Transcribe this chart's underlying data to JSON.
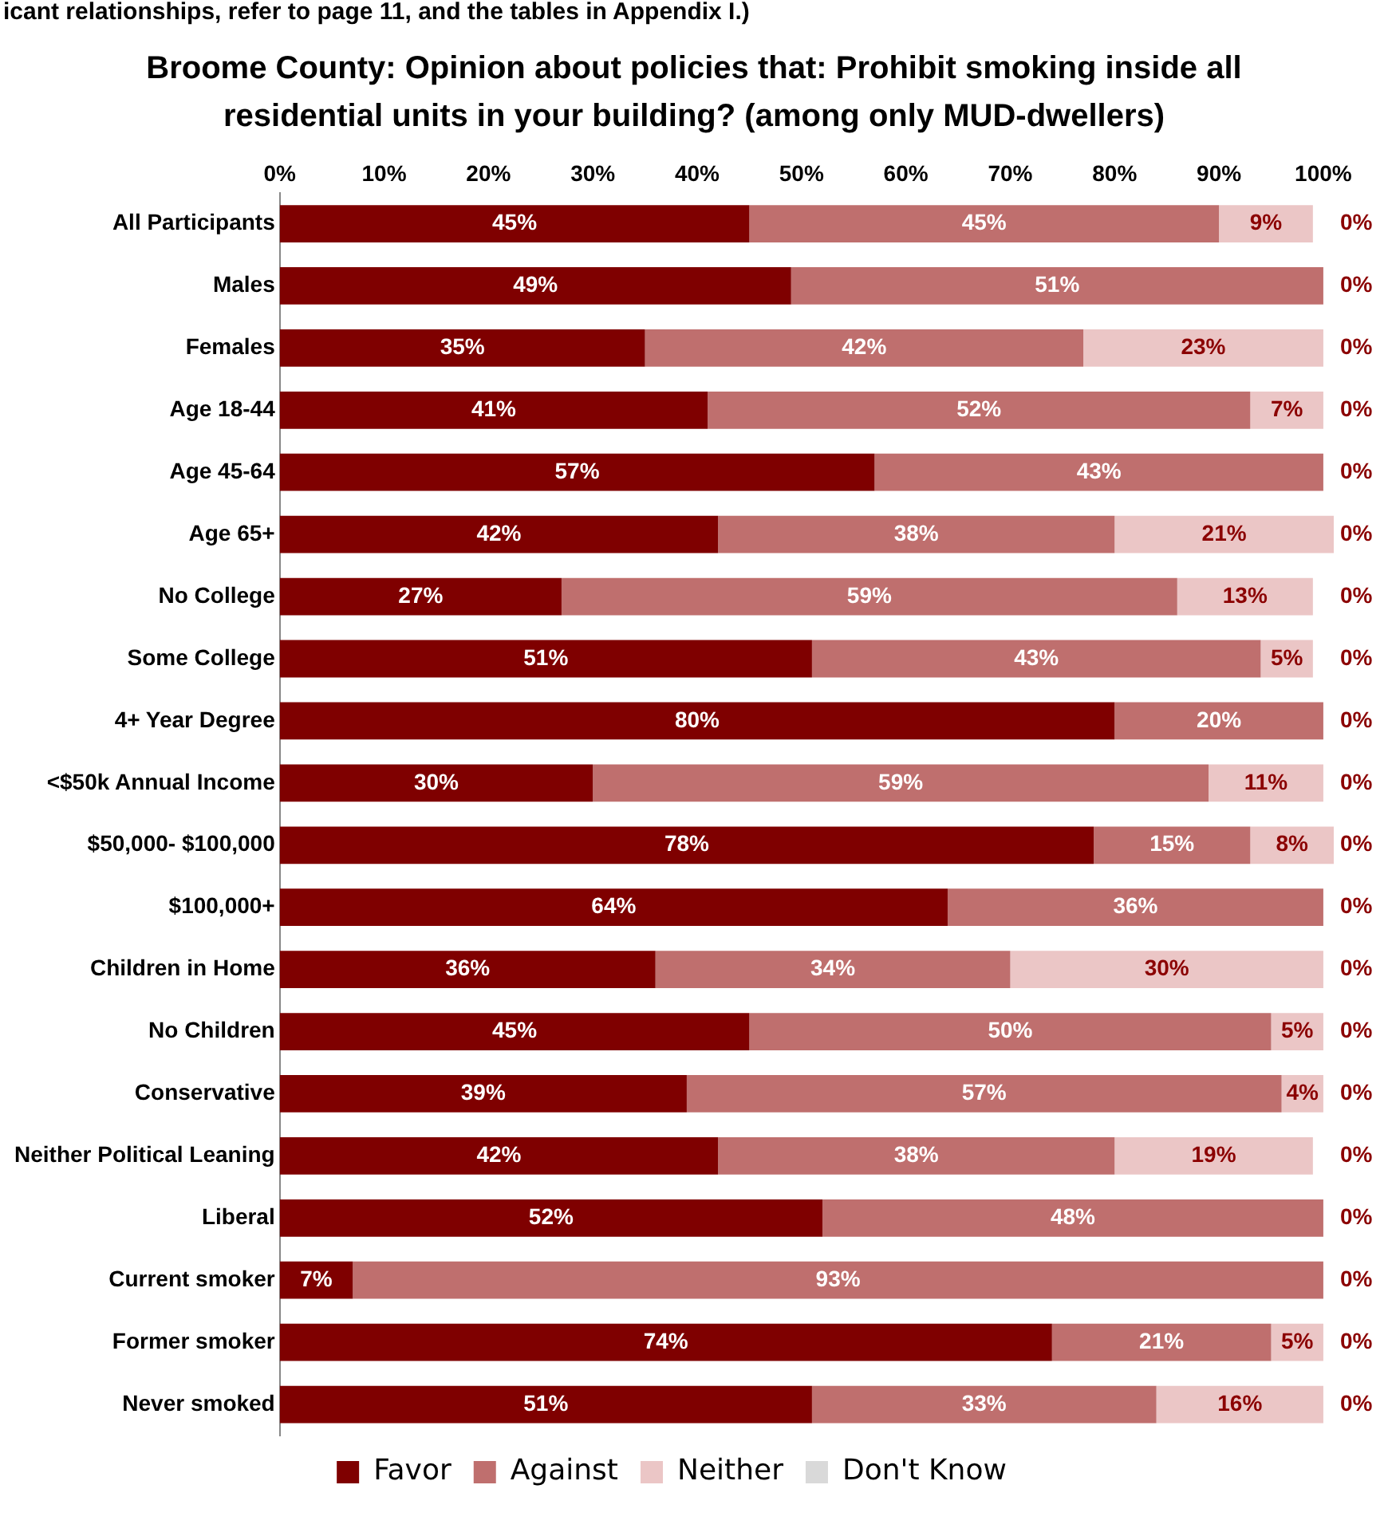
{
  "chart_data": {
    "type": "bar",
    "orientation": "horizontal",
    "stacked": true,
    "title": "Broome County: Opinion about policies that: Prohibit smoking inside all residential units in your building? (among only MUD-dwellers)",
    "annotations": [
      "icant relationships, refer to page 11, and the tables in Appendix I.)"
    ],
    "categories": [
      "All Participants",
      "Males",
      "Females",
      "Age 18-44",
      "Age 45-64",
      "Age 65+",
      "No College",
      "Some College",
      "4+ Year Degree",
      "<$50k Annual Income",
      "$50,000- $100,000",
      "$100,000+",
      "Children in Home",
      "No Children",
      "Conservative",
      "Neither Political Leaning",
      "Liberal",
      "Current smoker",
      "Former smoker",
      "Never smoked"
    ],
    "series": [
      {
        "name": "Favor",
        "color": "#7f0000",
        "values": [
          45,
          49,
          35,
          41,
          57,
          42,
          27,
          51,
          80,
          30,
          78,
          64,
          36,
          45,
          39,
          42,
          52,
          7,
          74,
          51
        ],
        "value_labels": [
          "45%",
          "49%",
          "35%",
          "41%",
          "57%",
          "42%",
          "27%",
          "51%",
          "80%",
          "30%",
          "78%",
          "64%",
          "36%",
          "45%",
          "39%",
          "42%",
          "52%",
          "7%",
          "74%",
          "51%"
        ]
      },
      {
        "name": "Against",
        "color": "#bf6f6e",
        "values": [
          45,
          51,
          42,
          52,
          43,
          38,
          59,
          43,
          20,
          59,
          15,
          36,
          34,
          50,
          57,
          38,
          48,
          93,
          21,
          33
        ],
        "value_labels": [
          "45%",
          "51%",
          "42%",
          "52%",
          "43%",
          "38%",
          "59%",
          "43%",
          "20%",
          "59%",
          "15%",
          "36%",
          "34%",
          "50%",
          "57%",
          "38%",
          "48%",
          "93%",
          "21%",
          "33%"
        ]
      },
      {
        "name": "Neither",
        "color": "#ebc6c6",
        "values": [
          9,
          0,
          23,
          7,
          0,
          21,
          13,
          5,
          0,
          11,
          8,
          0,
          30,
          5,
          4,
          19,
          0,
          0,
          5,
          16
        ],
        "value_labels": [
          "9%",
          null,
          "23%",
          "7%",
          null,
          "21%",
          "13%",
          "5%",
          null,
          "11%",
          "8%",
          null,
          "30%",
          "5%",
          "4%",
          "19%",
          null,
          null,
          "5%",
          "16%"
        ]
      },
      {
        "name": "Don't Know",
        "color": "#d9d9d9",
        "values": [
          0,
          0,
          0,
          0,
          0,
          0,
          0,
          0,
          0,
          0,
          0,
          0,
          0,
          0,
          0,
          0,
          0,
          0,
          0,
          0
        ],
        "value_labels": [
          "0%",
          "0%",
          "0%",
          "0%",
          "0%",
          "0%",
          "0%",
          "0%",
          "0%",
          "0%",
          "0%",
          "0%",
          "0%",
          "0%",
          "0%",
          "0%",
          "0%",
          "0%",
          "0%",
          "0%"
        ]
      }
    ],
    "xlim": [
      0,
      101
    ],
    "xticks": [
      {
        "value": 0,
        "label": "0%"
      },
      {
        "value": 10,
        "label": "10%"
      },
      {
        "value": 20,
        "label": "20%"
      },
      {
        "value": 30,
        "label": "30%"
      },
      {
        "value": 40,
        "label": "40%"
      },
      {
        "value": 50,
        "label": "50%"
      },
      {
        "value": 60,
        "label": "60%"
      },
      {
        "value": 70,
        "label": "70%"
      },
      {
        "value": 80,
        "label": "80%"
      },
      {
        "value": 90,
        "label": "90%"
      },
      {
        "value": 100,
        "label": "100%"
      }
    ],
    "grid": false,
    "legend": "bottom"
  }
}
